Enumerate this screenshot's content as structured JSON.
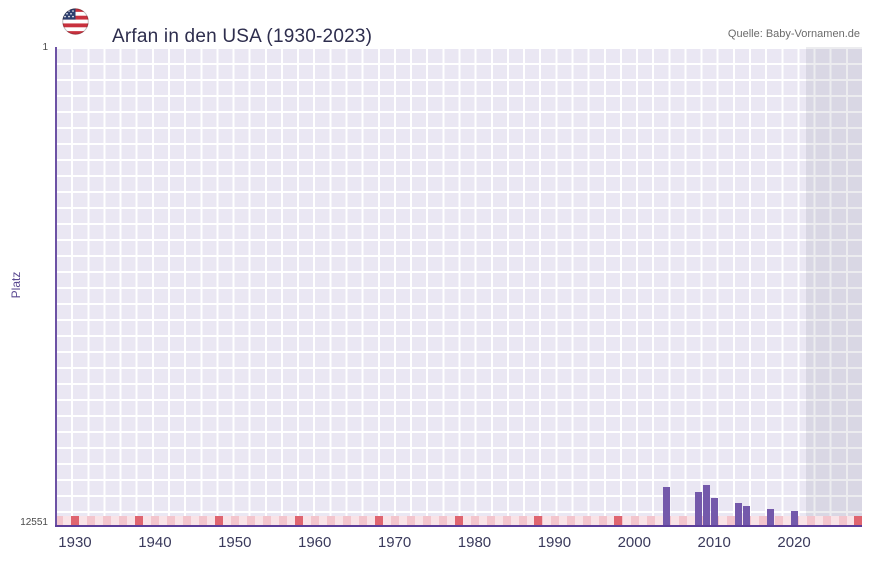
{
  "header": {
    "title": "Arfan in den USA (1930-2023)",
    "source": "Quelle: Baby-Vornamen.de"
  },
  "chart_data": {
    "type": "bar",
    "title": "Arfan in den USA (1930-2023)",
    "ylabel": "Platz",
    "y_axis": {
      "top_label": "1",
      "bottom_label": "12551",
      "min": 1,
      "max": 12551,
      "inverted": true
    },
    "x_ticks": [
      1930,
      1940,
      1950,
      1960,
      1970,
      1980,
      1990,
      2000,
      2010,
      2020
    ],
    "domain_years": [
      1927.5,
      2028.5
    ],
    "offrange_start_year": 2021.5,
    "bars": [
      {
        "year": 2004,
        "rank": 11550
      },
      {
        "year": 2008,
        "rank": 11700
      },
      {
        "year": 2009,
        "rank": 11500
      },
      {
        "year": 2010,
        "rank": 11850
      },
      {
        "year": 2013,
        "rank": 11980
      },
      {
        "year": 2014,
        "rank": 12050
      },
      {
        "year": 2017,
        "rank": 12130
      },
      {
        "year": 2020,
        "rank": 12190
      }
    ],
    "axis_marks_years": [
      1930,
      1938,
      1948,
      1958,
      1968,
      1978,
      1988,
      1998,
      2028
    ],
    "colors": {
      "bar": "#7459ab",
      "plot_bg": "#eae7f3",
      "grid": "#ffffff",
      "offrange_overlay": "rgba(110,110,135,0.13)",
      "axis": "#5c3d99",
      "mark": "#df6570",
      "stripe_a": "#f3c5cd",
      "stripe_b": "#f9e3e7"
    }
  }
}
